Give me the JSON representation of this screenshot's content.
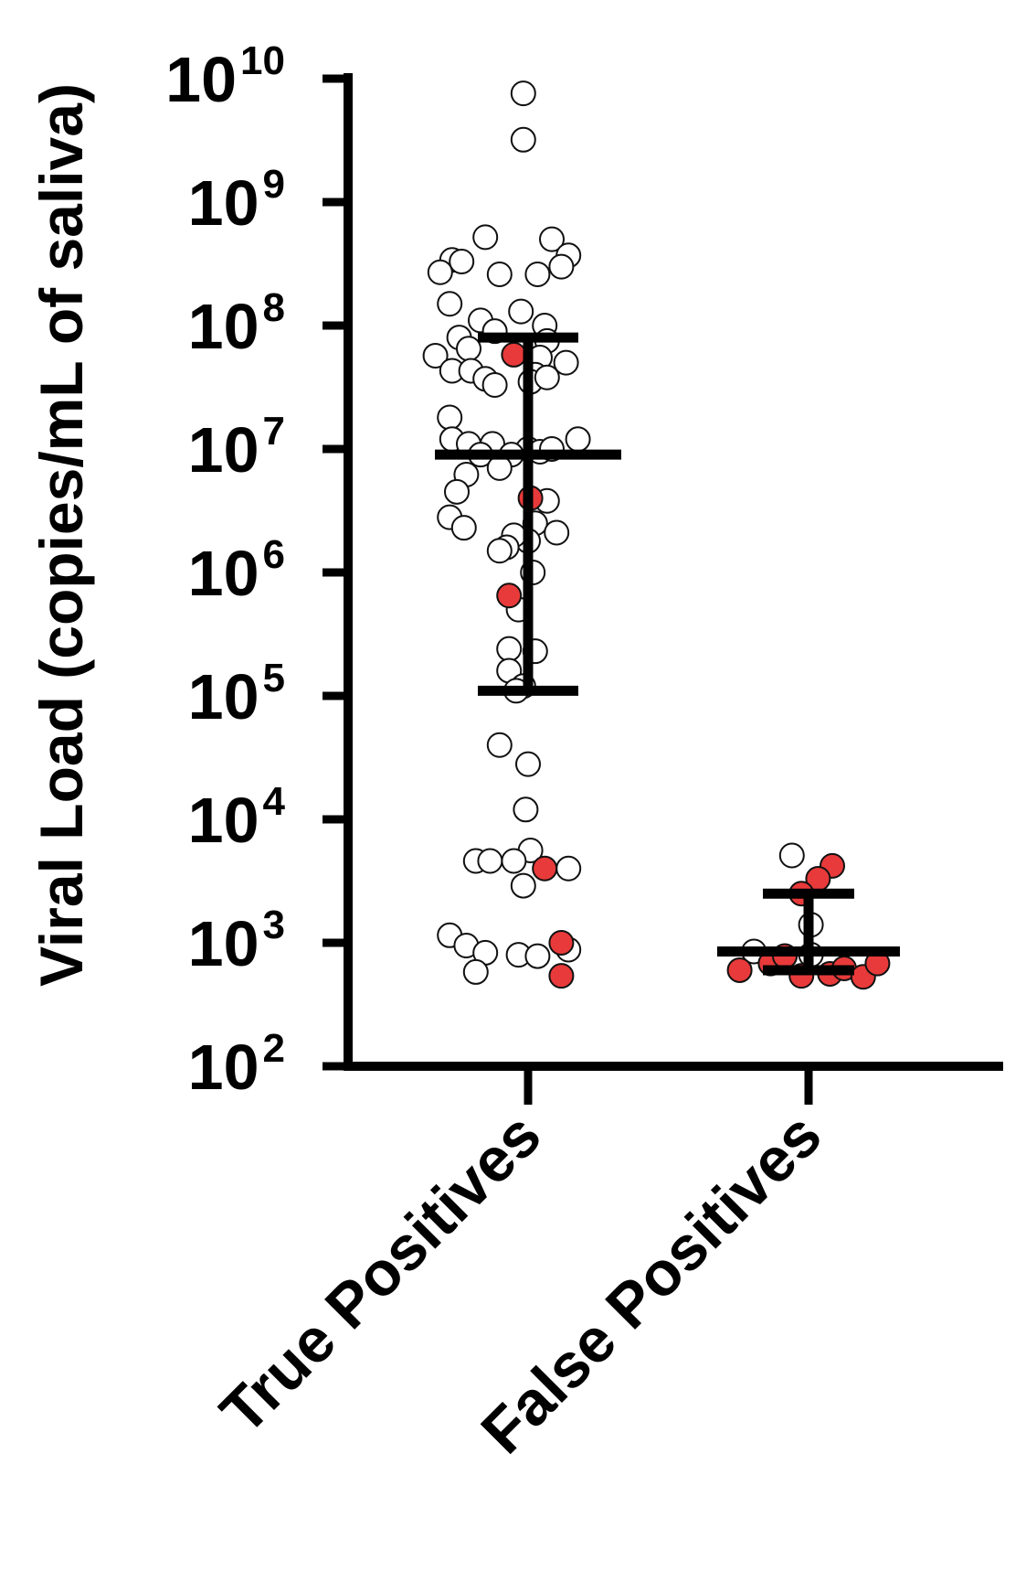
{
  "chart_data": {
    "type": "scatter",
    "title": "",
    "ylabel": "Viral Load (copies/mL of saliva)",
    "xlabel": "",
    "yscale": "log",
    "ylim": [
      100,
      10000000000
    ],
    "y_ticks": [
      {
        "base": "10",
        "exp": "2"
      },
      {
        "base": "10",
        "exp": "3"
      },
      {
        "base": "10",
        "exp": "4"
      },
      {
        "base": "10",
        "exp": "5"
      },
      {
        "base": "10",
        "exp": "6"
      },
      {
        "base": "10",
        "exp": "7"
      },
      {
        "base": "10",
        "exp": "8"
      },
      {
        "base": "10",
        "exp": "9"
      },
      {
        "base": "10",
        "exp": "10"
      }
    ],
    "categories": [
      "True Positives",
      "False Positives"
    ],
    "grid": false,
    "colors": {
      "open_fill": "#ffffff",
      "filled": "#e83a3a",
      "stroke": "#111111",
      "axis": "#000000"
    },
    "groups": [
      {
        "category": "True Positives",
        "median": 9000000,
        "q1": 110000,
        "q3": 80000000,
        "points_open": [
          [
            -0.02,
            7600000000
          ],
          [
            -0.02,
            3200000000
          ],
          [
            -0.18,
            520000000
          ],
          [
            0.1,
            500000000
          ],
          [
            -0.32,
            340000000
          ],
          [
            -0.28,
            330000000
          ],
          [
            -0.37,
            270000000
          ],
          [
            0.17,
            370000000
          ],
          [
            0.14,
            300000000
          ],
          [
            0.04,
            260000000
          ],
          [
            -0.12,
            260000000
          ],
          [
            -0.33,
            150000000
          ],
          [
            -0.2,
            110000000
          ],
          [
            -0.14,
            90000000
          ],
          [
            -0.03,
            130000000
          ],
          [
            0.07,
            100000000
          ],
          [
            -0.29,
            80000000
          ],
          [
            0.08,
            75000000
          ],
          [
            -0.25,
            65000000
          ],
          [
            -0.39,
            57000000
          ],
          [
            0.05,
            55000000
          ],
          [
            0.16,
            50000000
          ],
          [
            -0.32,
            43000000
          ],
          [
            -0.24,
            43000000
          ],
          [
            -0.18,
            37000000
          ],
          [
            0.03,
            40000000
          ],
          [
            -0.14,
            33000000
          ],
          [
            0.01,
            35000000
          ],
          [
            0.08,
            38000000
          ],
          [
            -0.33,
            18000000
          ],
          [
            -0.32,
            12000000
          ],
          [
            -0.25,
            11000000
          ],
          [
            -0.15,
            11000000
          ],
          [
            -0.2,
            9000000
          ],
          [
            0.0,
            10000000
          ],
          [
            0.05,
            9500000
          ],
          [
            0.1,
            10000000
          ],
          [
            0.21,
            12000000
          ],
          [
            -0.07,
            9000000
          ],
          [
            -0.12,
            7000000
          ],
          [
            -0.26,
            6200000
          ],
          [
            0.08,
            3800000
          ],
          [
            -0.33,
            2800000
          ],
          [
            -0.27,
            2300000
          ],
          [
            0.03,
            2500000
          ],
          [
            0.12,
            2100000
          ],
          [
            0.0,
            1800000
          ],
          [
            -0.06,
            2000000
          ],
          [
            -0.09,
            1600000
          ],
          [
            -0.12,
            1500000
          ],
          [
            0.02,
            1000000
          ],
          [
            -0.04,
            500000
          ],
          [
            -0.08,
            240000
          ],
          [
            0.03,
            230000
          ],
          [
            -0.08,
            160000
          ],
          [
            -0.02,
            120000
          ],
          [
            -0.05,
            110000
          ],
          [
            -0.12,
            40000
          ],
          [
            0.0,
            28000
          ],
          [
            -0.01,
            12000
          ],
          [
            -0.3,
            4500000
          ],
          [
            -0.22,
            4600
          ],
          [
            -0.16,
            4600
          ],
          [
            0.01,
            5600
          ],
          [
            -0.06,
            4600
          ],
          [
            -0.02,
            2900
          ],
          [
            0.17,
            4000
          ],
          [
            -0.33,
            1150
          ],
          [
            -0.26,
            950
          ],
          [
            -0.18,
            830
          ],
          [
            -0.04,
            800
          ],
          [
            0.04,
            780
          ],
          [
            0.17,
            880
          ],
          [
            -0.22,
            580
          ]
        ],
        "points_filled": [
          [
            -0.06,
            58000000
          ],
          [
            0.01,
            4000000
          ],
          [
            -0.08,
            650000
          ],
          [
            0.07,
            4000
          ],
          [
            0.14,
            1000
          ],
          [
            0.14,
            540
          ]
        ]
      },
      {
        "category": "False Positives",
        "median": 850,
        "q1": 600,
        "q3": 2500,
        "points_open": [
          [
            -0.23,
            850
          ],
          [
            0.01,
            1400
          ],
          [
            0.01,
            800
          ],
          [
            -0.07,
            5100
          ],
          [
            -0.1,
            780
          ]
        ],
        "points_filled": [
          [
            0.1,
            4200
          ],
          [
            0.04,
            3300
          ],
          [
            -0.03,
            2500
          ],
          [
            -0.29,
            600
          ],
          [
            -0.16,
            680
          ],
          [
            -0.1,
            780
          ],
          [
            -0.03,
            540
          ],
          [
            0.09,
            560
          ],
          [
            0.15,
            620
          ],
          [
            0.23,
            530
          ],
          [
            0.29,
            680
          ]
        ]
      }
    ]
  }
}
